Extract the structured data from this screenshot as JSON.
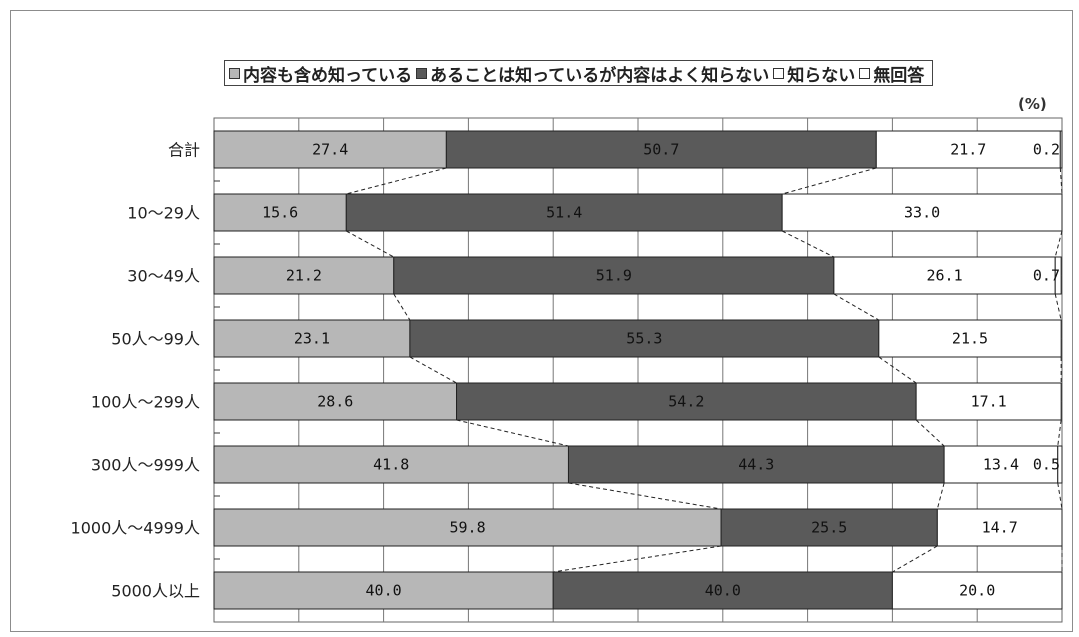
{
  "legend": {
    "items": [
      {
        "label": "内容も含め知っている",
        "color": "#b7b7b7"
      },
      {
        "label": "あることは知っているが内容はよく知らない",
        "color": "#5a5a5a"
      },
      {
        "label": "知らない",
        "color": "#ffffff"
      },
      {
        "label": "無回答",
        "color": "#ffffff"
      }
    ]
  },
  "unit_label": "(%)",
  "chart_data": {
    "type": "bar",
    "orientation": "horizontal",
    "stacked": true,
    "xlim": [
      0,
      100
    ],
    "categories": [
      "合計",
      "10～29人",
      "30～49人",
      "50人～99人",
      "100人～299人",
      "300人～999人",
      "1000人～4999人",
      "5000人以上"
    ],
    "series": [
      {
        "name": "内容も含め知っている",
        "values": [
          27.4,
          15.6,
          21.2,
          23.1,
          28.6,
          41.8,
          59.8,
          40.0
        ],
        "labels": [
          "27.4",
          "15.6",
          "21.2",
          "23.1",
          "28.6",
          "41.8",
          "59.8",
          "40.0"
        ]
      },
      {
        "name": "あることは知っているが内容はよく知らない",
        "values": [
          50.7,
          51.4,
          51.9,
          55.3,
          54.2,
          44.3,
          25.5,
          40.0
        ],
        "labels": [
          "50.7",
          "51.4",
          "51.9",
          "55.3",
          "54.2",
          "44.3",
          "25.5",
          "40.0"
        ]
      },
      {
        "name": "知らない",
        "values": [
          21.7,
          33.0,
          26.1,
          21.5,
          17.1,
          13.4,
          14.7,
          20.0
        ],
        "labels": [
          "21.7",
          "33.0",
          "26.1",
          "21.5",
          "17.1",
          "13.4",
          "14.7",
          "20.0"
        ]
      },
      {
        "name": "無回答",
        "values": [
          0.2,
          0,
          0.7,
          0,
          0,
          0.5,
          0,
          0
        ],
        "labels": [
          "0.2",
          "",
          "0.7",
          "",
          "",
          "0.5",
          "",
          ""
        ]
      }
    ],
    "colors": [
      "#b7b7b7",
      "#5a5a5a",
      "#ffffff",
      "#ffffff"
    ],
    "grid": true,
    "connector_lines": "dashed"
  }
}
